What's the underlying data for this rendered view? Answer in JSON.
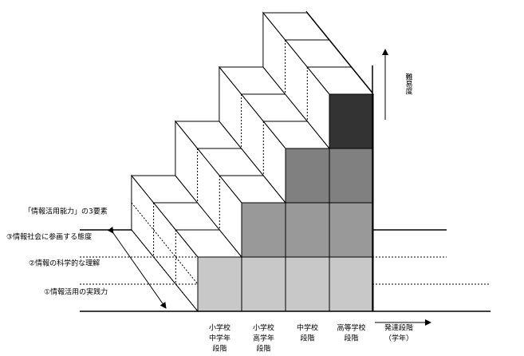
{
  "title": "「情報活用能力」の3要素",
  "elements": [
    "③情報社会に参画する態度",
    "②情報の科学的な理解",
    "①情報活用の実践力"
  ],
  "y_axis": "難易度",
  "x_axis": {
    "label": "発達段階",
    "sublabel": "（学年）",
    "stages": [
      [
        "小学校",
        "中学年",
        "段階"
      ],
      [
        "小学校",
        "高学年",
        "段階"
      ],
      [
        "中学校",
        "段階"
      ],
      [
        "高等学校",
        "段階"
      ]
    ]
  }
}
